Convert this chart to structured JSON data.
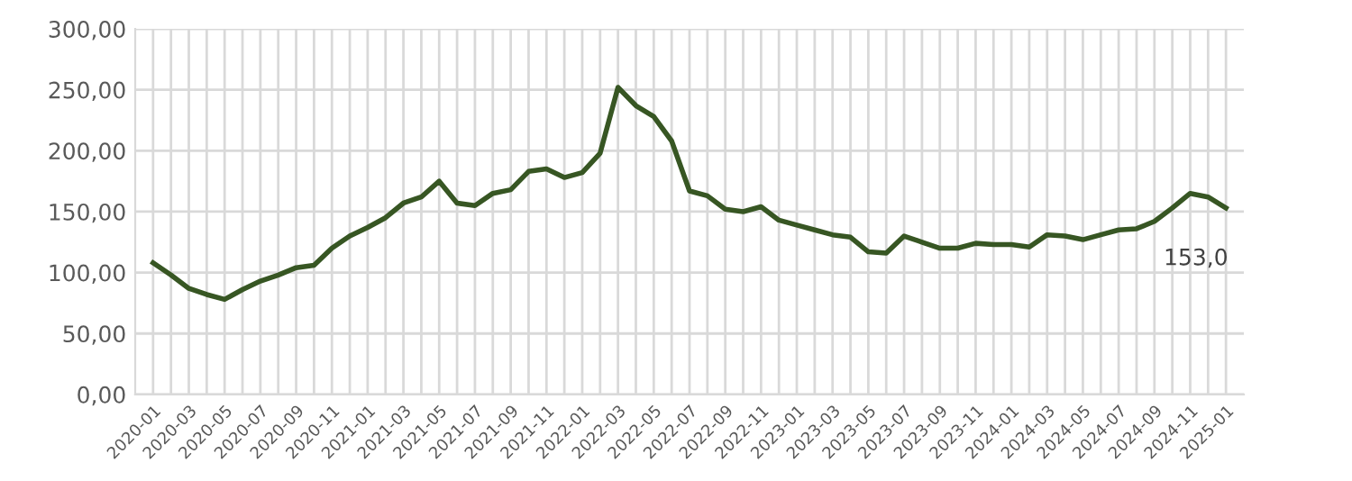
{
  "chart_data": {
    "type": "line",
    "categories": [
      "2020-01",
      null,
      "2020-03",
      null,
      "2020-05",
      null,
      "2020-07",
      null,
      "2020-09",
      null,
      "2020-11",
      null,
      "2021-01",
      null,
      "2021-03",
      null,
      "2021-05",
      null,
      "2021-07",
      null,
      "2021-09",
      null,
      "2021-11",
      null,
      "2022-01",
      null,
      "2022-03",
      null,
      "2022-05",
      null,
      "2022-07",
      null,
      "2022-09",
      null,
      "2022-11",
      null,
      "2023-01",
      null,
      "2023-03",
      null,
      "2023-05",
      null,
      "2023-07",
      null,
      "2023-09",
      null,
      "2023-11",
      null,
      "2024-01",
      null,
      "2024-03",
      null,
      "2024-05",
      null,
      "2024-07",
      null,
      "2024-09",
      null,
      "2024-11",
      null,
      "2025-01"
    ],
    "series": [
      {
        "color": "#375623",
        "values": [
          108,
          98,
          87,
          82,
          78,
          86,
          93,
          98,
          104,
          106,
          120,
          130,
          137,
          145,
          157,
          162,
          175,
          157,
          155,
          165,
          168,
          183,
          185,
          178,
          182,
          198,
          252,
          237,
          228,
          208,
          167,
          163,
          152,
          150,
          154,
          143,
          139,
          135,
          131,
          129,
          117,
          116,
          130,
          125,
          120,
          120,
          124,
          123,
          123,
          121,
          131,
          130,
          127,
          131,
          135,
          136,
          142,
          153,
          165,
          162,
          153
        ],
        "value_labels": [
          null,
          null,
          null,
          null,
          null,
          null,
          null,
          null,
          null,
          null,
          null,
          null,
          null,
          null,
          null,
          null,
          null,
          null,
          null,
          null,
          null,
          null,
          null,
          null,
          null,
          null,
          null,
          null,
          null,
          null,
          null,
          null,
          null,
          null,
          null,
          null,
          null,
          null,
          null,
          null,
          null,
          null,
          null,
          null,
          null,
          null,
          null,
          null,
          null,
          null,
          null,
          null,
          null,
          null,
          null,
          null,
          null,
          null,
          null,
          null,
          "153,0"
        ]
      }
    ],
    "ylim": [
      0,
      300
    ],
    "yticks": [
      {
        "value": 0,
        "label": "0,00"
      },
      {
        "value": 50,
        "label": "50,00"
      },
      {
        "value": 100,
        "label": "100,00"
      },
      {
        "value": 150,
        "label": "150,00"
      },
      {
        "value": 200,
        "label": "200,00"
      },
      {
        "value": 250,
        "label": "250,00"
      },
      {
        "value": 300,
        "label": "300,00"
      }
    ],
    "grid": true,
    "marker": "none",
    "line_style": "solid"
  }
}
